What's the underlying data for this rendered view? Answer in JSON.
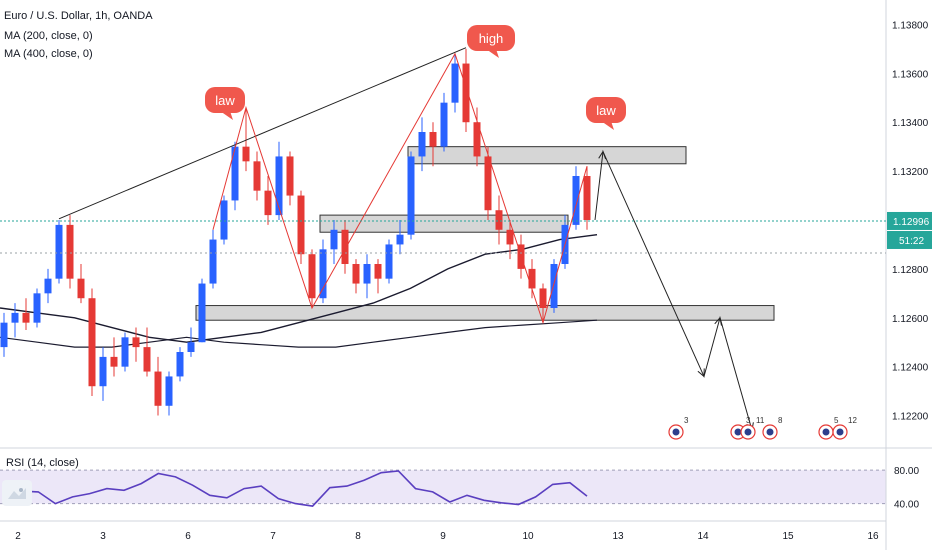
{
  "header": {
    "symbol_line": "Euro / U.S. Dollar, 1h, OANDA",
    "ma1": "MA (200, close, 0)",
    "ma2": "MA (400, close, 0)"
  },
  "rsi": {
    "label": "RSI (14, close)",
    "levels": [
      "80.00",
      "40.00"
    ]
  },
  "price_axis": {
    "ticks": [
      "1.13800",
      "1.13600",
      "1.13400",
      "1.13200",
      "1.13000",
      "1.12800",
      "1.12600",
      "1.12400",
      "1.12200"
    ]
  },
  "price_badge": {
    "price": "1.12996",
    "countdown": "51:22"
  },
  "time_axis": {
    "ticks": [
      "2",
      "3",
      "6",
      "7",
      "8",
      "9",
      "10",
      "13",
      "14",
      "15",
      "16"
    ]
  },
  "annotations": [
    {
      "text": "law"
    },
    {
      "text": "high"
    },
    {
      "text": "law"
    }
  ],
  "events": [
    "3",
    "3",
    "11",
    "8",
    "5",
    "12"
  ],
  "colors": {
    "up": "#2962ff",
    "down": "#e53935",
    "ma": "#1b1b2f",
    "rsi_line": "#5a3fc0",
    "rsi_band": "#ece7f8",
    "bubble": "#f0584d",
    "zone": "#d6d6d6",
    "last_price": "#26a69a"
  },
  "chart_data": {
    "type": "candlestick",
    "candles": [
      [
        1.1248,
        1.1262,
        1.1244,
        1.1258
      ],
      [
        1.1258,
        1.1266,
        1.1252,
        1.1262
      ],
      [
        1.1262,
        1.1268,
        1.1255,
        1.1258
      ],
      [
        1.1258,
        1.1272,
        1.1256,
        1.127
      ],
      [
        1.127,
        1.128,
        1.1266,
        1.1276
      ],
      [
        1.1276,
        1.13,
        1.1274,
        1.1298
      ],
      [
        1.1298,
        1.1302,
        1.1272,
        1.1276
      ],
      [
        1.1276,
        1.1282,
        1.1266,
        1.1268
      ],
      [
        1.1268,
        1.1272,
        1.1228,
        1.1232
      ],
      [
        1.1232,
        1.1248,
        1.1226,
        1.1244
      ],
      [
        1.1244,
        1.1252,
        1.1236,
        1.124
      ],
      [
        1.124,
        1.1254,
        1.1238,
        1.1252
      ],
      [
        1.1252,
        1.1256,
        1.1242,
        1.1248
      ],
      [
        1.1248,
        1.1256,
        1.1236,
        1.1238
      ],
      [
        1.1238,
        1.1244,
        1.122,
        1.1224
      ],
      [
        1.1224,
        1.1238,
        1.122,
        1.1236
      ],
      [
        1.1236,
        1.1248,
        1.1234,
        1.1246
      ],
      [
        1.1246,
        1.1256,
        1.1244,
        1.125
      ],
      [
        1.125,
        1.1276,
        1.125,
        1.1274
      ],
      [
        1.1274,
        1.1296,
        1.1272,
        1.1292
      ],
      [
        1.1292,
        1.131,
        1.129,
        1.1308
      ],
      [
        1.1308,
        1.1332,
        1.1304,
        1.133
      ],
      [
        1.133,
        1.1346,
        1.132,
        1.1324
      ],
      [
        1.1324,
        1.1328,
        1.1308,
        1.1312
      ],
      [
        1.1312,
        1.1318,
        1.1298,
        1.1302
      ],
      [
        1.1302,
        1.1332,
        1.13,
        1.1326
      ],
      [
        1.1326,
        1.1328,
        1.1306,
        1.131
      ],
      [
        1.131,
        1.1312,
        1.1282,
        1.1286
      ],
      [
        1.1286,
        1.1288,
        1.1264,
        1.1268
      ],
      [
        1.1268,
        1.1292,
        1.1266,
        1.1288
      ],
      [
        1.1288,
        1.13,
        1.1282,
        1.1296
      ],
      [
        1.1296,
        1.13,
        1.1278,
        1.1282
      ],
      [
        1.1282,
        1.1284,
        1.127,
        1.1274
      ],
      [
        1.1274,
        1.1286,
        1.1268,
        1.1282
      ],
      [
        1.1282,
        1.1284,
        1.127,
        1.1276
      ],
      [
        1.1276,
        1.1292,
        1.1274,
        1.129
      ],
      [
        1.129,
        1.13,
        1.1286,
        1.1294
      ],
      [
        1.1294,
        1.1328,
        1.1292,
        1.1326
      ],
      [
        1.1326,
        1.1342,
        1.132,
        1.1336
      ],
      [
        1.1336,
        1.134,
        1.1322,
        1.133
      ],
      [
        1.133,
        1.1352,
        1.1328,
        1.1348
      ],
      [
        1.1348,
        1.1368,
        1.1344,
        1.1364
      ],
      [
        1.1364,
        1.137,
        1.1336,
        1.134
      ],
      [
        1.134,
        1.1346,
        1.1322,
        1.1326
      ],
      [
        1.1326,
        1.133,
        1.13,
        1.1304
      ],
      [
        1.1304,
        1.131,
        1.129,
        1.1296
      ],
      [
        1.1296,
        1.13,
        1.1284,
        1.129
      ],
      [
        1.129,
        1.1294,
        1.1276,
        1.128
      ],
      [
        1.128,
        1.1284,
        1.1268,
        1.1272
      ],
      [
        1.1272,
        1.1274,
        1.1258,
        1.1264
      ],
      [
        1.1264,
        1.1284,
        1.1262,
        1.1282
      ],
      [
        1.1282,
        1.1302,
        1.128,
        1.1298
      ],
      [
        1.1298,
        1.1322,
        1.1296,
        1.1318
      ],
      [
        1.1318,
        1.1322,
        1.1296,
        1.13
      ]
    ],
    "ma200": [
      1.1264,
      1.1262,
      1.126,
      1.1256,
      1.1252,
      1.125,
      1.1252,
      1.1254,
      1.1258,
      1.1262,
      1.1266,
      1.1272,
      1.128,
      1.1286,
      1.1288,
      1.1292,
      1.1294
    ],
    "ma400": [
      1.1252,
      1.125,
      1.1248,
      1.1248,
      1.125,
      1.1252,
      1.125,
      1.1249,
      1.1248,
      1.1248,
      1.125,
      1.1252,
      1.1254,
      1.1256,
      1.1257,
      1.1258,
      1.1259
    ],
    "rsi": [
      46,
      55,
      54,
      40,
      48,
      52,
      58,
      56,
      64,
      76,
      72,
      62,
      50,
      47,
      58,
      61,
      46,
      40,
      37,
      59,
      61,
      68,
      77,
      79,
      58,
      54,
      42,
      50,
      44,
      41,
      39,
      48,
      63,
      65,
      49
    ],
    "zones": [
      [
        1.1323,
        1.133
      ],
      [
        1.1295,
        1.1302
      ],
      [
        1.1259,
        1.1265
      ]
    ],
    "projection": [
      1.1328,
      1.1236,
      1.126,
      1.1214
    ],
    "ylim": [
      1.121,
      1.139
    ],
    "rsi_levels": [
      80,
      40
    ]
  }
}
